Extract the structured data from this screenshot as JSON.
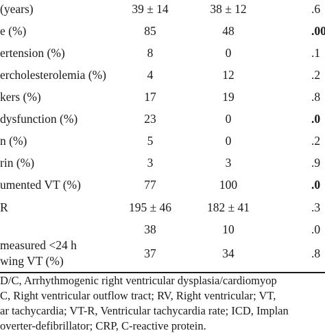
{
  "table": {
    "rows": [
      {
        "label": "(years)",
        "v1": "39 ± 14",
        "v2": "38 ± 12",
        "p": ".6",
        "p_bold": false
      },
      {
        "label": "e (%)",
        "v1": "85",
        "v2": "48",
        "p": ".00",
        "p_bold": true
      },
      {
        "label": "ertension (%)",
        "v1": "8",
        "v2": "0",
        "p": ".1",
        "p_bold": false
      },
      {
        "label": "ercholesterolemia (%)",
        "v1": "4",
        "v2": "12",
        "p": ".2",
        "p_bold": false
      },
      {
        "label": "kers (%)",
        "v1": "17",
        "v2": "19",
        "p": ".8",
        "p_bold": false
      },
      {
        "label": "dysfunction (%)",
        "v1": "23",
        "v2": "0",
        "p": ".0",
        "p_bold": true
      },
      {
        "label": "n (%)",
        "v1": "5",
        "v2": "0",
        "p": ".2",
        "p_bold": false
      },
      {
        "label": "rin (%)",
        "v1": "3",
        "v2": "3",
        "p": ".9",
        "p_bold": false
      },
      {
        "label": "umented VT (%)",
        "v1": "77",
        "v2": "100",
        "p": ".0",
        "p_bold": true
      },
      {
        "label": "R",
        "v1": "195 ± 46",
        "v2": "182 ± 41",
        "p": ".3",
        "p_bold": false
      },
      {
        "label": "",
        "v1": "38",
        "v2": "10",
        "p": ".0",
        "p_bold": false
      }
    ],
    "last_row": {
      "label_line1": " measured <24 h",
      "label_line2": "wing VT (%)",
      "v1": "37",
      "v2": "34",
      "p": ".8",
      "p_bold": false
    }
  },
  "footnote": {
    "lines": [
      "D/C, Arrhythmogenic right ventricular dysplasia/cardiomyop",
      "C, Right ventricular outflow tract; RV, Right ventricular; VT,",
      "ar tachycardia; VT-R, Ventricular tachycardia rate; ICD, Implan",
      "overter-defibrillator; CRP, C-reactive protein."
    ]
  }
}
